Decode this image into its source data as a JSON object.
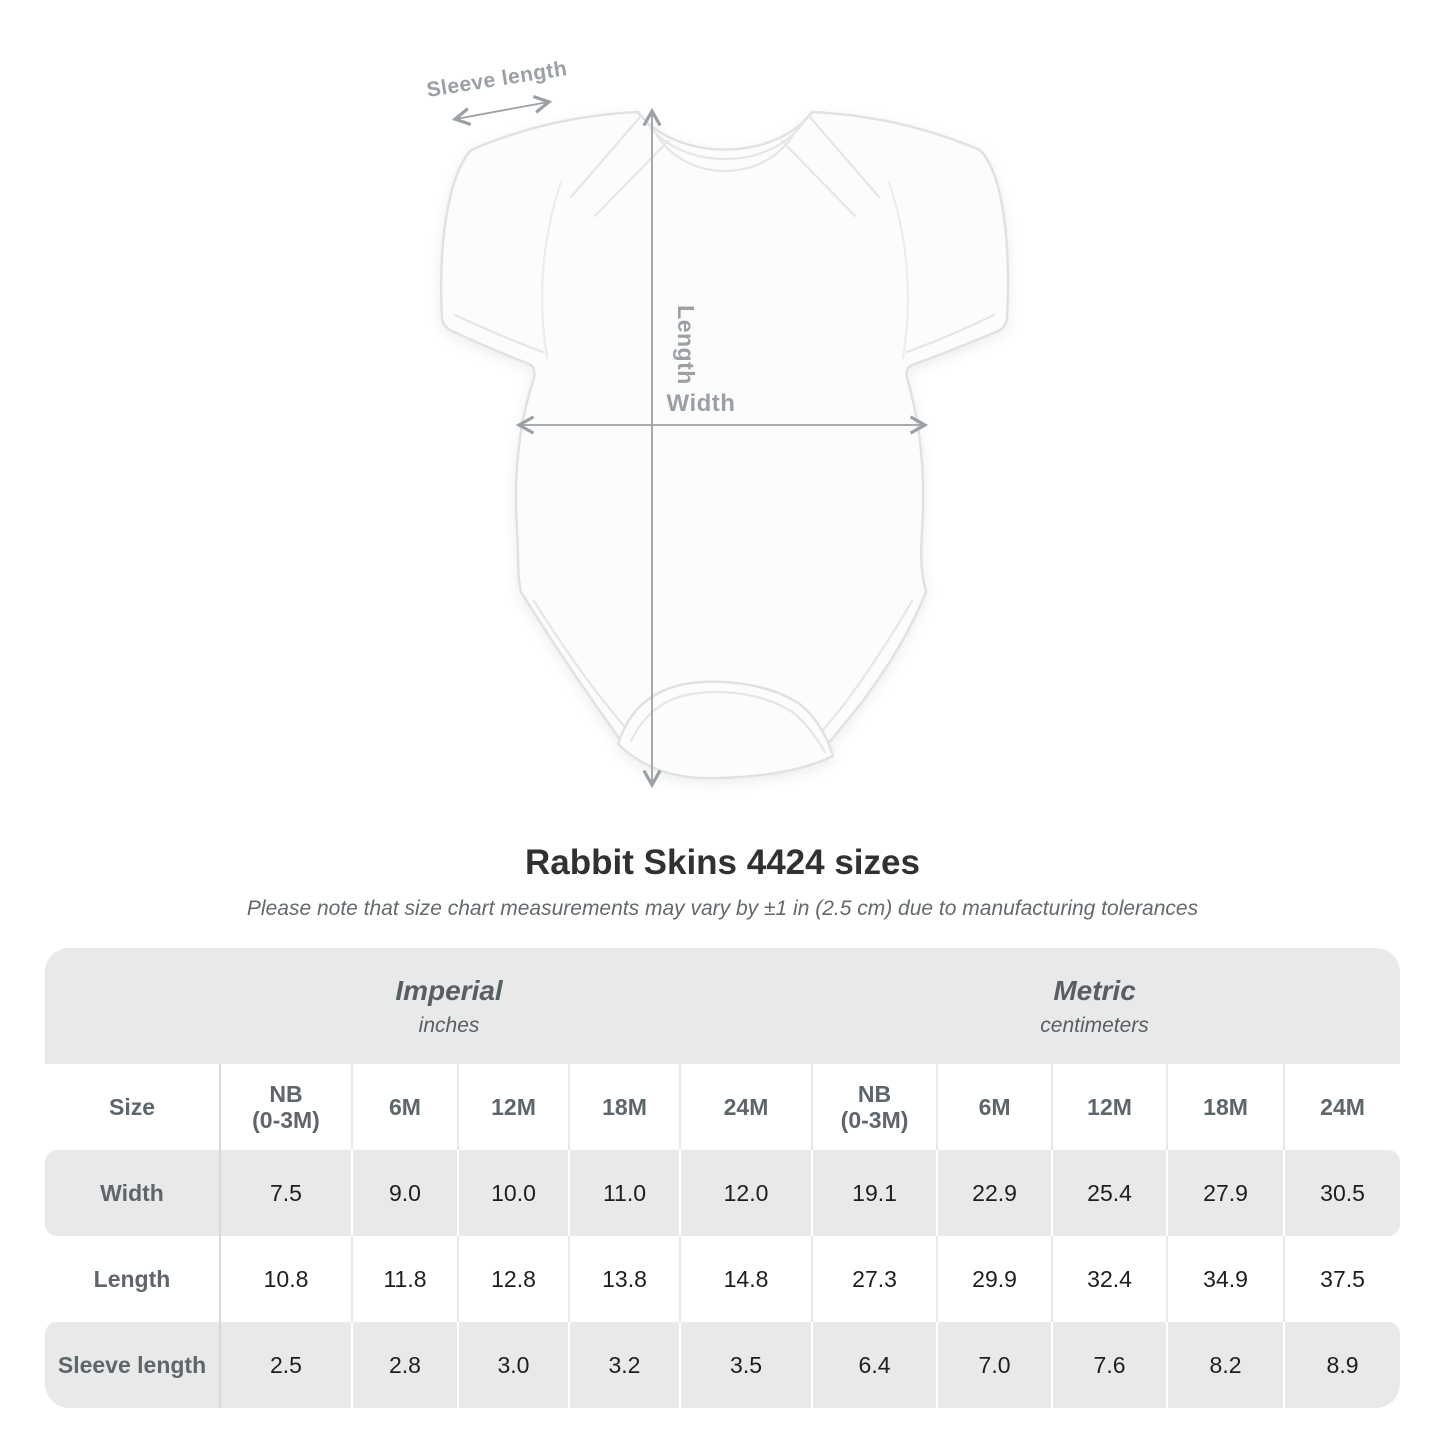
{
  "diagram": {
    "garment": "infant-bodysuit",
    "arrow_color": "#9aa0a4",
    "labels": {
      "sleeve_length": "Sleeve length",
      "length": "Length",
      "width": "Width"
    }
  },
  "title": "Rabbit Skins 4424 sizes",
  "subtitle": "Please note that size chart measurements may vary by ±1 in (2.5 cm) due to manufacturing tolerances",
  "size_chart": {
    "groups": [
      {
        "name": "Imperial",
        "unit": "inches"
      },
      {
        "name": "Metric",
        "unit": "centimeters"
      }
    ],
    "size_label": "Size",
    "sizes": [
      "NB\n(0-3M)",
      "6M",
      "12M",
      "18M",
      "24M",
      "NB\n(0-3M)",
      "6M",
      "12M",
      "18M",
      "24M"
    ],
    "rows": [
      {
        "label": "Width",
        "values": [
          "7.5",
          "9.0",
          "10.0",
          "11.0",
          "12.0",
          "19.1",
          "22.9",
          "25.4",
          "27.9",
          "30.5"
        ]
      },
      {
        "label": "Length",
        "values": [
          "10.8",
          "11.8",
          "12.8",
          "13.8",
          "14.8",
          "27.3",
          "29.9",
          "32.4",
          "34.9",
          "37.5"
        ]
      },
      {
        "label": "Sleeve length",
        "values": [
          "2.5",
          "2.8",
          "3.0",
          "3.2",
          "3.5",
          "6.4",
          "7.0",
          "7.6",
          "8.2",
          "8.9"
        ]
      }
    ],
    "stripe_color": "#e9e9e9",
    "value_text_color": "#1d1e20",
    "label_text_color": "#5d666b"
  }
}
